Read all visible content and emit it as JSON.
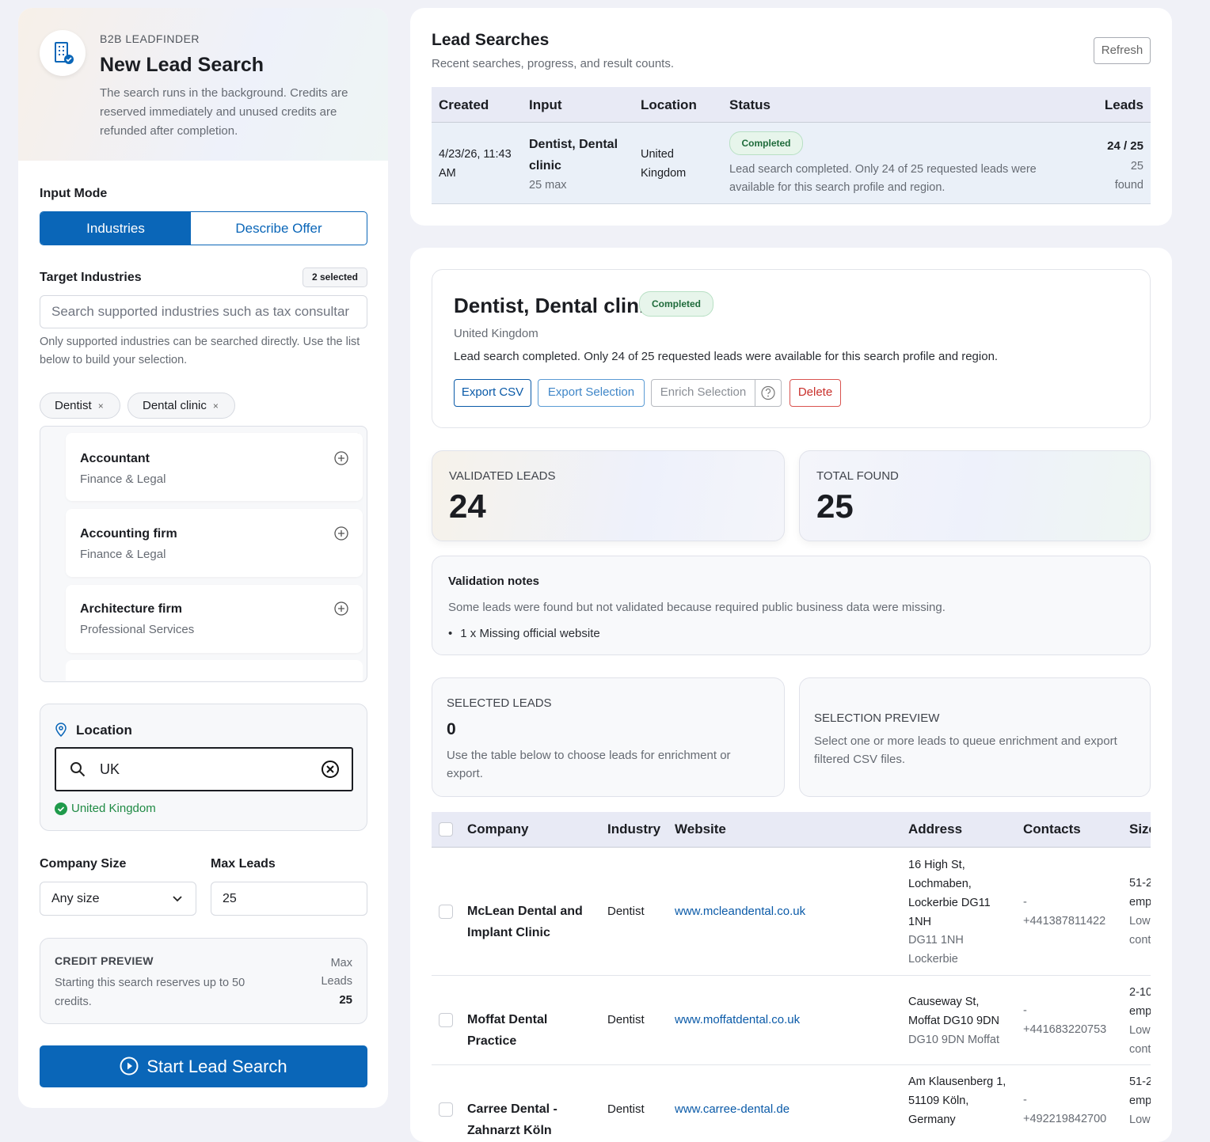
{
  "sidebar": {
    "brand": "B2B LEADFINDER",
    "title": "New Lead Search",
    "description": "The search runs in the background. Credits are reserved immediately and unused credits are refunded after completion.",
    "input_mode": {
      "label": "Input Mode",
      "options": [
        "Industries",
        "Describe Offer"
      ]
    },
    "target_industries": {
      "label": "Target Industries",
      "badge": "2 selected",
      "placeholder": "Search supported industries such as tax consultar",
      "help": "Only supported industries can be searched directly. Use the list below to build your selection.",
      "chips": [
        "Dentist",
        "Dental clinic"
      ],
      "list": [
        {
          "name": "Accountant",
          "group": "Finance & Legal"
        },
        {
          "name": "Accounting firm",
          "group": "Finance & Legal"
        },
        {
          "name": "Architecture firm",
          "group": "Professional Services"
        }
      ]
    },
    "location": {
      "label": "Location",
      "query": "UK",
      "match": "United Kingdom"
    },
    "company_size": {
      "label": "Company Size",
      "value": "Any size"
    },
    "max_leads": {
      "label": "Max Leads",
      "value": 25
    },
    "credit_preview": {
      "label": "CREDIT PREVIEW",
      "text": "Starting this search reserves up to 50 credits.",
      "max_label": "Max Leads",
      "max_value": 25
    },
    "start_button": "Start Lead Search"
  },
  "searches": {
    "title": "Lead Searches",
    "subtitle": "Recent searches, progress, and result counts.",
    "refresh": "Refresh",
    "columns": [
      "Created",
      "Input",
      "Location",
      "Status",
      "Leads"
    ],
    "rows": [
      {
        "created": "4/23/26, 11:43 AM",
        "input": "Dentist, Dental clinic",
        "input_max": "25 max",
        "location": "United Kingdom",
        "status": "Completed",
        "message": "Lead search completed. Only 24 of 25 requested leads were available for this search profile and region.",
        "leads": "24 / 25",
        "found": "25 found"
      }
    ]
  },
  "detail": {
    "title": "Dentist, Dental clinic",
    "status": "Completed",
    "location": "United Kingdom",
    "message": "Lead search completed. Only 24 of 25 requested leads were available for this search profile and region.",
    "actions": [
      "Export CSV",
      "Export Selection",
      "Enrich Selection",
      "Delete"
    ],
    "validated": {
      "label": "VALIDATED LEADS",
      "value": 24
    },
    "total": {
      "label": "TOTAL FOUND",
      "value": 25
    },
    "notes": {
      "title": "Validation notes",
      "text": "Some leads were found but not validated because required public business data were missing.",
      "items": [
        "1 x Missing official website"
      ]
    },
    "selected": {
      "label": "SELECTED LEADS",
      "value": 0,
      "text": "Use the table below to choose leads for enrichment or export."
    },
    "preview": {
      "label": "SELECTION PREVIEW",
      "text": "Select one or more leads to queue enrichment and export filtered CSV files."
    }
  },
  "leads": {
    "columns": [
      "Company",
      "Industry",
      "Website",
      "Address",
      "Contacts",
      "Size"
    ],
    "rows": [
      {
        "company": "McLean Dental and Implant Clinic",
        "industry": "Dentist",
        "website": "www.mcleandental.co.uk",
        "address": "16 High St, Lochmaben, Lockerbie DG11 1NH",
        "address_extra": "DG11 1NH Lockerbie",
        "contacts": [
          "-",
          "+441387811422"
        ],
        "size": [
          "51-2",
          "emp",
          "Low",
          "cont"
        ]
      },
      {
        "company": "Moffat Dental Practice",
        "industry": "Dentist",
        "website": "www.moffatdental.co.uk",
        "address": "Causeway St, Moffat DG10 9DN",
        "address_extra": "DG10 9DN Moffat",
        "contacts": [
          "-",
          "+441683220753"
        ],
        "size": [
          "2-10",
          "emp",
          "Low",
          "cont"
        ]
      },
      {
        "company": "Carree Dental - Zahnarzt Köln",
        "industry": "Dentist",
        "website": "www.carree-dental.de",
        "address": "Am Klausenberg 1, 51109 Köln, Germany",
        "contacts": [
          "-",
          "+492219842700"
        ],
        "size": [
          "51-2",
          "emp",
          "Low"
        ]
      }
    ]
  }
}
